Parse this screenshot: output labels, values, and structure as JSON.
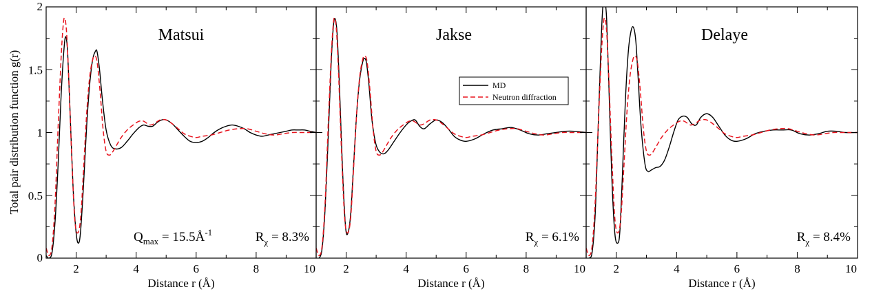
{
  "ylabel": "Total pair distribution function g(r)",
  "xlabel": "Distance r (Å)",
  "legend": {
    "md": "MD",
    "neutron": "Neutron diffraction"
  },
  "colors": {
    "md": "#000000",
    "neutron": "#e8141e"
  },
  "chart_data": [
    {
      "type": "line",
      "title": "Matsui",
      "annotation": {
        "q_main": "Q",
        "q_sub": "max",
        "q_value": " = 15.5Å",
        "q_sup": "-1",
        "r_main": "R",
        "r_sub": "χ",
        "r_value": " = 8.3%"
      },
      "xlim": [
        1,
        10
      ],
      "ylim": [
        0,
        2
      ],
      "x_ticks": [
        "2",
        "4",
        "6",
        "8",
        "10"
      ],
      "y_ticks": [
        "0",
        "0.5",
        "1",
        "1.5",
        "2"
      ],
      "grid": false,
      "series": [
        {
          "name": "MD",
          "x": [
            1.0,
            1.1,
            1.2,
            1.3,
            1.4,
            1.5,
            1.6,
            1.66,
            1.72,
            1.8,
            1.9,
            2.0,
            2.08,
            2.15,
            2.25,
            2.35,
            2.45,
            2.55,
            2.65,
            2.7,
            2.78,
            2.88,
            3.0,
            3.15,
            3.3,
            3.5,
            3.7,
            3.9,
            4.1,
            4.25,
            4.4,
            4.55,
            4.7,
            4.85,
            5.0,
            5.2,
            5.4,
            5.6,
            5.8,
            6.0,
            6.2,
            6.4,
            6.6,
            6.8,
            7.0,
            7.2,
            7.4,
            7.6,
            7.8,
            8.0,
            8.2,
            8.4,
            8.6,
            8.8,
            9.0,
            9.2,
            9.4,
            9.6,
            9.8,
            10.0
          ],
          "y": [
            0.02,
            0.0,
            0.05,
            0.3,
            0.75,
            1.3,
            1.68,
            1.76,
            1.62,
            1.15,
            0.55,
            0.2,
            0.12,
            0.22,
            0.6,
            1.05,
            1.38,
            1.58,
            1.65,
            1.64,
            1.5,
            1.25,
            1.02,
            0.9,
            0.87,
            0.88,
            0.93,
            0.99,
            1.04,
            1.06,
            1.05,
            1.05,
            1.08,
            1.1,
            1.1,
            1.07,
            1.02,
            0.97,
            0.93,
            0.92,
            0.93,
            0.96,
            1.0,
            1.03,
            1.05,
            1.06,
            1.05,
            1.03,
            1.0,
            0.98,
            0.97,
            0.98,
            0.99,
            1.0,
            1.01,
            1.02,
            1.02,
            1.02,
            1.01,
            1.0
          ]
        },
        {
          "name": "Neutron diffraction",
          "x": [
            1.0,
            1.1,
            1.2,
            1.3,
            1.4,
            1.5,
            1.57,
            1.62,
            1.68,
            1.75,
            1.85,
            1.95,
            2.05,
            2.15,
            2.25,
            2.35,
            2.45,
            2.55,
            2.62,
            2.7,
            2.8,
            2.9,
            3.0,
            3.1,
            3.2,
            3.35,
            3.5,
            3.7,
            3.9,
            4.1,
            4.25,
            4.45,
            4.6,
            4.8,
            5.0,
            5.2,
            5.4,
            5.6,
            5.8,
            6.0,
            6.2,
            6.5,
            6.8,
            7.1,
            7.4,
            7.7,
            8.0,
            8.3,
            8.6,
            8.9,
            9.2,
            9.5,
            9.8,
            10.0
          ],
          "y": [
            0.08,
            0.02,
            0.1,
            0.45,
            1.05,
            1.6,
            1.86,
            1.91,
            1.8,
            1.45,
            0.82,
            0.32,
            0.2,
            0.32,
            0.72,
            1.15,
            1.44,
            1.58,
            1.61,
            1.56,
            1.32,
            1.02,
            0.85,
            0.82,
            0.84,
            0.9,
            0.96,
            1.02,
            1.06,
            1.09,
            1.09,
            1.06,
            1.07,
            1.1,
            1.1,
            1.07,
            1.03,
            0.99,
            0.97,
            0.96,
            0.97,
            0.98,
            1.0,
            1.02,
            1.03,
            1.03,
            1.01,
            0.99,
            0.98,
            0.99,
            1.0,
            1.0,
            1.0,
            1.0
          ]
        }
      ]
    },
    {
      "type": "line",
      "title": "Jakse",
      "annotation": {
        "r_main": "R",
        "r_sub": "χ",
        "r_value": " = 6.1%"
      },
      "xlim": [
        1,
        10
      ],
      "ylim": [
        0,
        2
      ],
      "x_ticks": [
        "2",
        "4",
        "6",
        "8",
        "10"
      ],
      "y_ticks": [],
      "grid": false,
      "series": [
        {
          "name": "MD",
          "x": [
            1.0,
            1.1,
            1.2,
            1.3,
            1.4,
            1.5,
            1.58,
            1.64,
            1.7,
            1.78,
            1.88,
            1.98,
            2.06,
            2.15,
            2.25,
            2.35,
            2.45,
            2.55,
            2.62,
            2.68,
            2.76,
            2.86,
            2.98,
            3.1,
            3.25,
            3.4,
            3.6,
            3.8,
            4.0,
            4.15,
            4.3,
            4.45,
            4.6,
            4.8,
            5.0,
            5.2,
            5.4,
            5.6,
            5.8,
            6.0,
            6.3,
            6.6,
            6.9,
            7.2,
            7.5,
            7.8,
            8.1,
            8.4,
            8.7,
            9.0,
            9.3,
            9.6,
            10.0
          ],
          "y": [
            0.0,
            0.0,
            0.08,
            0.4,
            0.95,
            1.55,
            1.86,
            1.9,
            1.78,
            1.35,
            0.7,
            0.25,
            0.2,
            0.35,
            0.75,
            1.15,
            1.42,
            1.56,
            1.59,
            1.55,
            1.38,
            1.1,
            0.92,
            0.85,
            0.83,
            0.86,
            0.93,
            1.0,
            1.06,
            1.09,
            1.1,
            1.05,
            1.03,
            1.07,
            1.1,
            1.08,
            1.03,
            0.97,
            0.94,
            0.93,
            0.95,
            0.99,
            1.02,
            1.03,
            1.04,
            1.02,
            0.99,
            0.98,
            0.99,
            1.0,
            1.01,
            1.01,
            1.0
          ]
        },
        {
          "name": "Neutron diffraction",
          "x": [
            1.0,
            1.1,
            1.2,
            1.3,
            1.4,
            1.5,
            1.57,
            1.62,
            1.68,
            1.75,
            1.85,
            1.95,
            2.05,
            2.15,
            2.25,
            2.35,
            2.45,
            2.55,
            2.62,
            2.7,
            2.8,
            2.9,
            3.0,
            3.1,
            3.2,
            3.35,
            3.5,
            3.7,
            3.9,
            4.1,
            4.25,
            4.45,
            4.6,
            4.8,
            5.0,
            5.2,
            5.4,
            5.6,
            5.8,
            6.0,
            6.2,
            6.5,
            6.8,
            7.1,
            7.4,
            7.7,
            8.0,
            8.3,
            8.6,
            8.9,
            9.2,
            9.5,
            9.8,
            10.0
          ],
          "y": [
            0.08,
            0.02,
            0.1,
            0.45,
            1.05,
            1.6,
            1.86,
            1.91,
            1.8,
            1.45,
            0.82,
            0.32,
            0.2,
            0.32,
            0.72,
            1.15,
            1.44,
            1.58,
            1.61,
            1.56,
            1.32,
            1.02,
            0.85,
            0.82,
            0.84,
            0.9,
            0.96,
            1.02,
            1.06,
            1.09,
            1.09,
            1.06,
            1.07,
            1.1,
            1.1,
            1.07,
            1.03,
            0.99,
            0.97,
            0.96,
            0.97,
            0.98,
            1.0,
            1.02,
            1.03,
            1.03,
            1.01,
            0.99,
            0.98,
            0.99,
            1.0,
            1.0,
            1.0,
            1.0
          ]
        }
      ]
    },
    {
      "type": "line",
      "title": "Delaye",
      "annotation": {
        "r_main": "R",
        "r_sub": "χ",
        "r_value": " = 8.4%"
      },
      "xlim": [
        1,
        10
      ],
      "ylim": [
        0,
        2
      ],
      "x_ticks": [
        "2",
        "4",
        "6",
        "8",
        "10"
      ],
      "y_ticks": [],
      "grid": false,
      "series": [
        {
          "name": "MD",
          "x": [
            1.0,
            1.1,
            1.2,
            1.3,
            1.4,
            1.5,
            1.56,
            1.62,
            1.68,
            1.75,
            1.85,
            1.95,
            2.05,
            2.12,
            2.2,
            2.3,
            2.4,
            2.5,
            2.58,
            2.65,
            2.72,
            2.82,
            2.95,
            3.05,
            3.15,
            3.3,
            3.45,
            3.6,
            3.75,
            3.9,
            4.05,
            4.2,
            4.35,
            4.5,
            4.65,
            4.8,
            5.0,
            5.2,
            5.4,
            5.6,
            5.8,
            6.0,
            6.3,
            6.6,
            6.9,
            7.2,
            7.5,
            7.8,
            8.1,
            8.4,
            8.7,
            9.0,
            9.3,
            9.6,
            10.0
          ],
          "y": [
            0.0,
            0.0,
            0.05,
            0.35,
            1.05,
            1.75,
            2.02,
            2.05,
            1.9,
            1.4,
            0.65,
            0.2,
            0.12,
            0.22,
            0.65,
            1.25,
            1.65,
            1.82,
            1.83,
            1.72,
            1.45,
            1.05,
            0.75,
            0.69,
            0.7,
            0.72,
            0.73,
            0.78,
            0.88,
            1.0,
            1.1,
            1.13,
            1.12,
            1.07,
            1.06,
            1.12,
            1.15,
            1.12,
            1.05,
            0.98,
            0.94,
            0.93,
            0.95,
            0.99,
            1.01,
            1.02,
            1.02,
            1.02,
            0.99,
            0.98,
            0.99,
            1.01,
            1.01,
            1.0,
            1.0
          ]
        },
        {
          "name": "Neutron diffraction",
          "x": [
            1.0,
            1.1,
            1.2,
            1.3,
            1.4,
            1.5,
            1.57,
            1.62,
            1.68,
            1.75,
            1.85,
            1.95,
            2.05,
            2.15,
            2.25,
            2.35,
            2.45,
            2.55,
            2.62,
            2.7,
            2.8,
            2.9,
            3.0,
            3.1,
            3.2,
            3.35,
            3.5,
            3.7,
            3.9,
            4.1,
            4.25,
            4.45,
            4.6,
            4.8,
            5.0,
            5.2,
            5.4,
            5.6,
            5.8,
            6.0,
            6.2,
            6.5,
            6.8,
            7.1,
            7.4,
            7.7,
            8.0,
            8.3,
            8.6,
            8.9,
            9.2,
            9.5,
            9.8,
            10.0
          ],
          "y": [
            0.08,
            0.02,
            0.1,
            0.45,
            1.05,
            1.6,
            1.86,
            1.91,
            1.8,
            1.45,
            0.82,
            0.32,
            0.2,
            0.32,
            0.72,
            1.15,
            1.44,
            1.58,
            1.61,
            1.56,
            1.32,
            1.02,
            0.85,
            0.82,
            0.84,
            0.9,
            0.96,
            1.02,
            1.06,
            1.09,
            1.09,
            1.06,
            1.07,
            1.1,
            1.1,
            1.07,
            1.03,
            0.99,
            0.97,
            0.96,
            0.97,
            0.98,
            1.0,
            1.02,
            1.03,
            1.03,
            1.01,
            0.99,
            0.98,
            0.99,
            1.0,
            1.0,
            1.0,
            1.0
          ]
        }
      ]
    }
  ]
}
